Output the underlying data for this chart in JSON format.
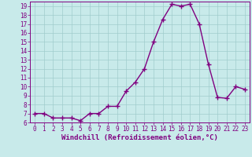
{
  "x": [
    0,
    1,
    2,
    3,
    4,
    5,
    6,
    7,
    8,
    9,
    10,
    11,
    12,
    13,
    14,
    15,
    16,
    17,
    18,
    19,
    20,
    21,
    22,
    23
  ],
  "y": [
    7.0,
    7.0,
    6.5,
    6.5,
    6.5,
    6.2,
    7.0,
    7.0,
    7.8,
    7.8,
    9.5,
    10.5,
    12.0,
    15.0,
    17.5,
    19.2,
    19.0,
    19.2,
    17.0,
    12.5,
    8.8,
    8.7,
    10.0,
    9.7
  ],
  "line_color": "#800080",
  "marker": "+",
  "marker_size": 4,
  "bg_color": "#c8eaea",
  "grid_color": "#a0cccc",
  "xlabel": "Windchill (Refroidissement éolien,°C)",
  "ylabel": "",
  "ylim": [
    6,
    19.5
  ],
  "xlim": [
    -0.5,
    23.5
  ],
  "yticks": [
    6,
    7,
    8,
    9,
    10,
    11,
    12,
    13,
    14,
    15,
    16,
    17,
    18,
    19
  ],
  "xticks": [
    0,
    1,
    2,
    3,
    4,
    5,
    6,
    7,
    8,
    9,
    10,
    11,
    12,
    13,
    14,
    15,
    16,
    17,
    18,
    19,
    20,
    21,
    22,
    23
  ],
  "tick_color": "#800080",
  "label_fontsize": 6.5,
  "tick_fontsize": 5.5,
  "linewidth": 1.0,
  "marker_linewidth": 1.0
}
